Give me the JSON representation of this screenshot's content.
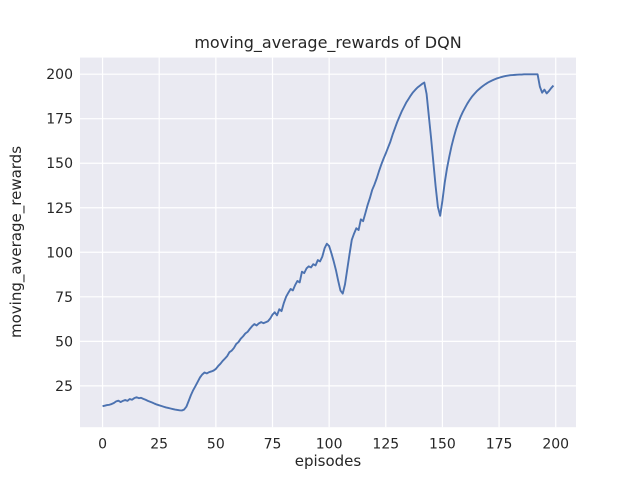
{
  "figure": {
    "background_color": "#ffffff",
    "axes_background_color": "#eaeaf2",
    "grid_color": "#ffffff",
    "text_color": "#262626"
  },
  "chart_data": {
    "type": "line",
    "title": "moving_average_rewards of DQN",
    "xlabel": "episodes",
    "ylabel": "moving_average_rewards",
    "x_ticks": [
      0,
      25,
      50,
      75,
      100,
      125,
      150,
      175,
      200
    ],
    "y_ticks": [
      25,
      50,
      75,
      100,
      125,
      150,
      175,
      200
    ],
    "xlim": [
      -9.95,
      208.95
    ],
    "ylim": [
      1.8,
      209.3
    ],
    "grid": true,
    "legend_position": "none",
    "series": [
      {
        "name": "DQN moving average reward",
        "color": "#4c72b0",
        "line_width": 1.9,
        "x_mode": "index",
        "x0": 0,
        "dx": 1,
        "y": [
          13.6,
          13.9,
          14.2,
          14.4,
          14.8,
          15.4,
          16.3,
          16.7,
          15.9,
          16.6,
          17.1,
          16.6,
          17.6,
          17.2,
          18.1,
          18.6,
          18.1,
          18.3,
          17.7,
          17.2,
          16.6,
          16.1,
          15.6,
          15.0,
          14.5,
          14.1,
          13.7,
          13.3,
          12.9,
          12.6,
          12.3,
          12.0,
          11.7,
          11.5,
          11.3,
          11.2,
          11.7,
          13.3,
          16.5,
          19.8,
          22.6,
          24.9,
          27.3,
          29.7,
          31.4,
          32.5,
          32.0,
          32.7,
          33.1,
          33.6,
          34.5,
          36.1,
          37.4,
          39.0,
          40.3,
          41.7,
          43.9,
          44.8,
          46.3,
          48.5,
          49.6,
          51.5,
          52.8,
          54.4,
          55.3,
          57.0,
          58.5,
          59.7,
          58.9,
          60.1,
          60.8,
          60.2,
          60.7,
          61.3,
          62.8,
          65.0,
          66.3,
          64.6,
          68.0,
          67.0,
          71.5,
          75.0,
          77.3,
          79.4,
          78.6,
          81.6,
          83.9,
          83.1,
          89.1,
          88.3,
          90.9,
          92.1,
          91.5,
          93.3,
          92.6,
          95.6,
          94.9,
          97.6,
          102.3,
          104.8,
          103.5,
          99.5,
          95.0,
          90.0,
          84.0,
          78.5,
          76.8,
          82.0,
          90.5,
          99.0,
          107.0,
          110.5,
          113.5,
          112.5,
          118.5,
          117.5,
          122.0,
          126.6,
          130.5,
          135.0,
          138.0,
          141.5,
          145.5,
          149.2,
          152.5,
          155.5,
          158.8,
          162.0,
          166.0,
          169.5,
          173.0,
          176.0,
          179.0,
          181.5,
          184.0,
          186.0,
          188.0,
          189.8,
          191.2,
          192.5,
          193.5,
          194.5,
          195.3,
          189.0,
          176.5,
          164.0,
          150.5,
          137.0,
          125.5,
          120.5,
          129.0,
          139.0,
          147.0,
          153.5,
          159.5,
          164.5,
          169.0,
          172.8,
          176.0,
          178.8,
          181.2,
          183.5,
          185.5,
          187.3,
          188.8,
          190.2,
          191.4,
          192.5,
          193.5,
          194.4,
          195.2,
          195.9,
          196.5,
          197.1,
          197.6,
          198.0,
          198.4,
          198.7,
          199.0,
          199.2,
          199.4,
          199.5,
          199.6,
          199.7,
          199.8,
          199.8,
          199.9,
          199.9,
          199.9,
          199.9,
          199.9,
          199.9,
          199.9,
          193.0,
          189.6,
          191.3,
          189.2,
          190.5,
          192.2,
          193.6
        ]
      }
    ]
  }
}
